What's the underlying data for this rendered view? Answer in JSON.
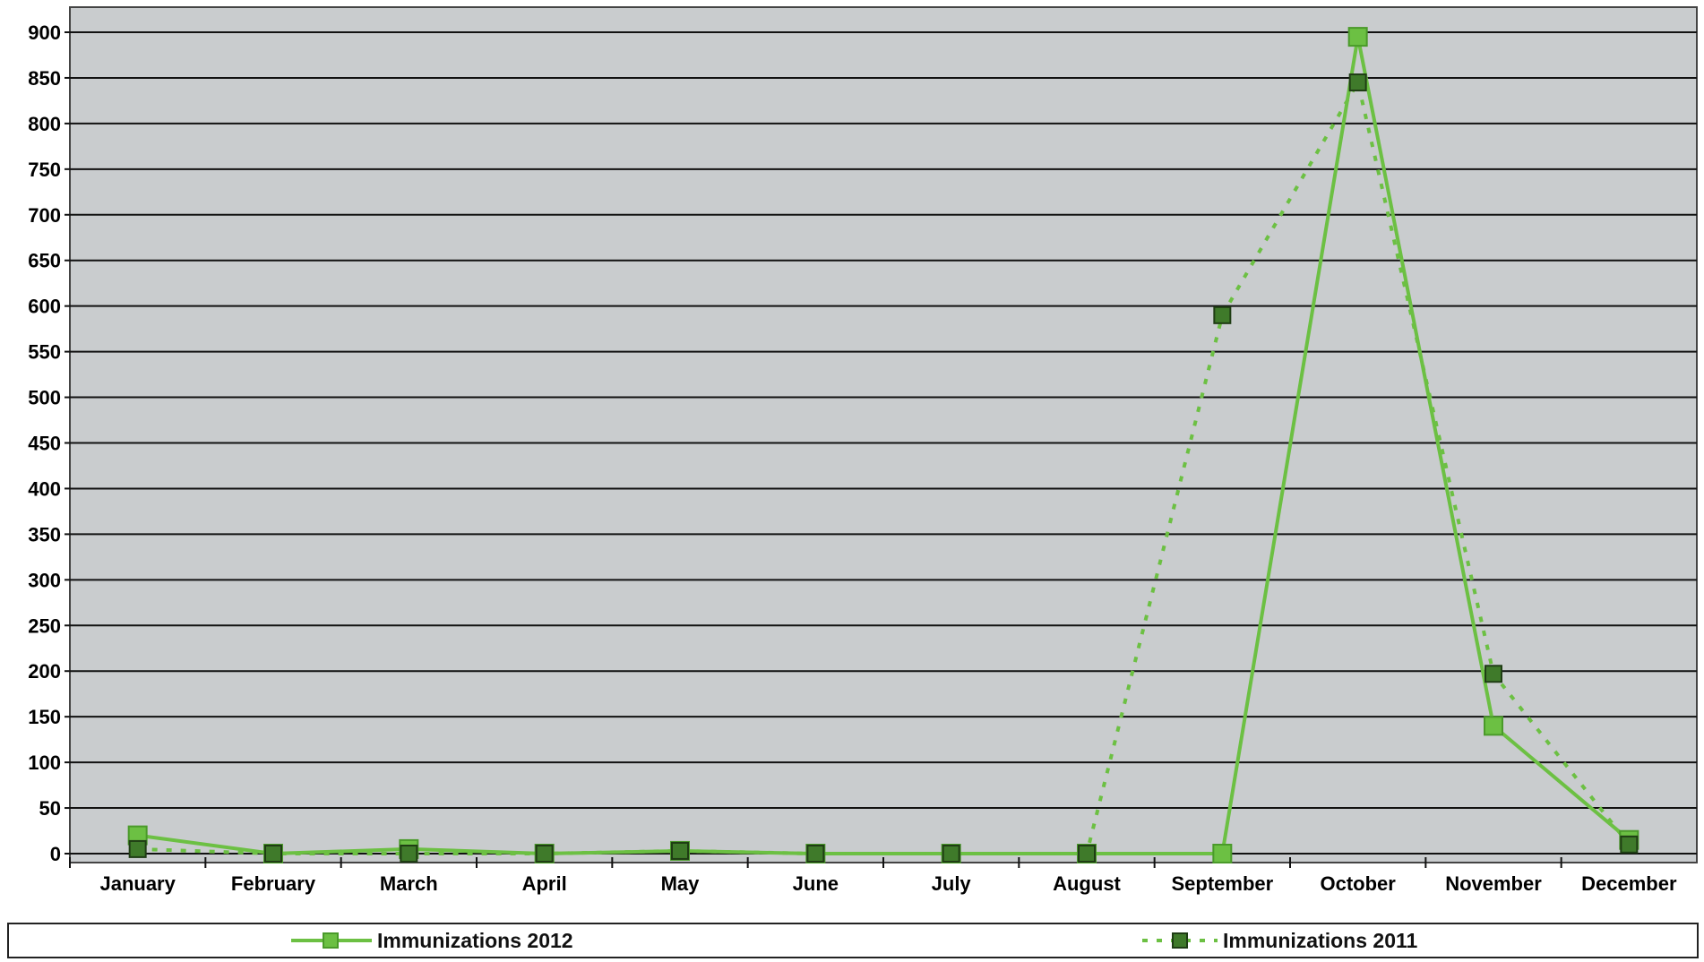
{
  "chart_data": {
    "type": "line",
    "categories": [
      "January",
      "February",
      "March",
      "April",
      "May",
      "June",
      "July",
      "August",
      "September",
      "October",
      "November",
      "December"
    ],
    "ylim": [
      0,
      900
    ],
    "yticks": [
      0,
      50,
      100,
      150,
      200,
      250,
      300,
      350,
      400,
      450,
      500,
      550,
      600,
      650,
      700,
      750,
      800,
      850,
      900
    ],
    "grid": true,
    "legend_position": "bottom",
    "series": [
      {
        "name": "Immunizations 2012",
        "style": "solid",
        "color": "#6cc043",
        "marker_color": "#6cc043",
        "values": [
          20,
          0,
          5,
          0,
          3,
          0,
          0,
          0,
          0,
          895,
          140,
          15
        ]
      },
      {
        "name": "Immunizations 2011",
        "style": "dotted",
        "color": "#6cc043",
        "marker_color": "#3f7a2a",
        "values": [
          5,
          0,
          0,
          0,
          3,
          0,
          0,
          0,
          590,
          845,
          197,
          10
        ]
      }
    ]
  },
  "colors": {
    "plot_bg": "#c9ccce",
    "gridline": "#111111",
    "line": "#6cc043",
    "marker_2011": "#3f7a2a"
  }
}
